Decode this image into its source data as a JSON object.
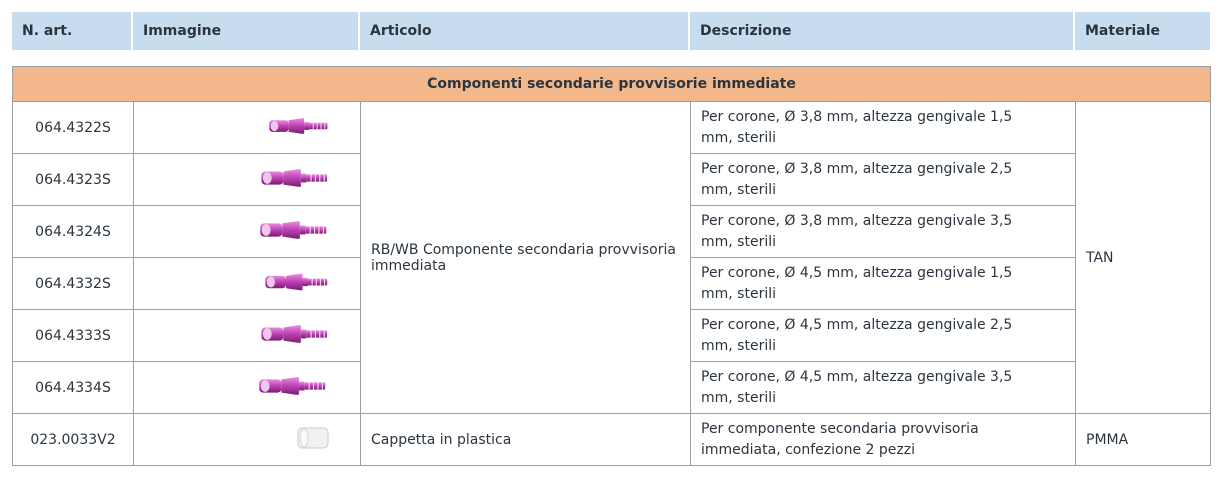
{
  "table": {
    "header": [
      "N. art.",
      "Immagine",
      "Articolo",
      "Descrizione",
      "Materiale"
    ],
    "section": "Componenti secondarie provvisorie immediate",
    "rows": [
      {
        "art": "064.4322S",
        "description": "Per corone, Ø 3,8 mm, altezza gengivale 1,5 mm, sterili"
      },
      {
        "art": "064.4323S",
        "description": "Per corone, Ø 3,8 mm, altezza gengivale 2,5 mm, sterili"
      },
      {
        "art": "064.4324S",
        "description": "Per corone, Ø 3,8 mm, altezza gengivale 3,5 mm, sterili"
      },
      {
        "art": "064.4332S",
        "description": "Per corone, Ø 4,5 mm, altezza gengivale 1,5 mm, sterili"
      },
      {
        "art": "064.4333S",
        "description": "Per corone, Ø 4,5 mm, altezza gengivale 2,5 mm, sterili"
      },
      {
        "art": "064.4334S",
        "description": "Per corone, Ø 4,5 mm, altezza gengivale 3,5 mm, sterili"
      },
      {
        "art": "023.0033V2",
        "article": "Cappetta in plastica",
        "description": "Per componente secondaria provvisoria immediata, confezione 2 pezzi",
        "material": "PMMA"
      }
    ],
    "group_article": "RB/WB Componente secondaria provvisoria immediata",
    "group_material": "TAN"
  }
}
